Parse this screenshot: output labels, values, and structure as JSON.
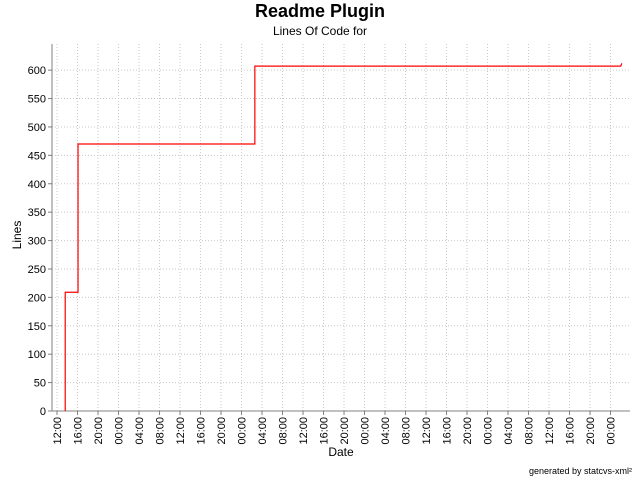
{
  "chart_data": {
    "type": "line",
    "title": "Readme Plugin",
    "subtitle": "Lines Of Code for",
    "x_label": "Date",
    "y_label": "Lines",
    "footer": "generated by statcvs-xml²",
    "grid": true,
    "xlim": [
      -0.98,
      111.8
    ],
    "xticks": [
      {
        "value": 0,
        "label": "12:00"
      },
      {
        "value": 4,
        "label": "16:00"
      },
      {
        "value": 8,
        "label": "20:00"
      },
      {
        "value": 12,
        "label": "00:00"
      },
      {
        "value": 16,
        "label": "04:00"
      },
      {
        "value": 20,
        "label": "08:00"
      },
      {
        "value": 24,
        "label": "12:00"
      },
      {
        "value": 28,
        "label": "16:00"
      },
      {
        "value": 32,
        "label": "20:00"
      },
      {
        "value": 36,
        "label": "00:00"
      },
      {
        "value": 40,
        "label": "04:00"
      },
      {
        "value": 44,
        "label": "08:00"
      },
      {
        "value": 48,
        "label": "12:00"
      },
      {
        "value": 52,
        "label": "16:00"
      },
      {
        "value": 56,
        "label": "20:00"
      },
      {
        "value": 60,
        "label": "00:00"
      },
      {
        "value": 64,
        "label": "04:00"
      },
      {
        "value": 68,
        "label": "08:00"
      },
      {
        "value": 72,
        "label": "12:00"
      },
      {
        "value": 76,
        "label": "16:00"
      },
      {
        "value": 80,
        "label": "20:00"
      },
      {
        "value": 84,
        "label": "00:00"
      },
      {
        "value": 88,
        "label": "04:00"
      },
      {
        "value": 92,
        "label": "08:00"
      },
      {
        "value": 96,
        "label": "12:00"
      },
      {
        "value": 100,
        "label": "16:00"
      },
      {
        "value": 104,
        "label": "20:00"
      },
      {
        "value": 108,
        "label": "00:00"
      }
    ],
    "ylim": [
      0,
      646
    ],
    "yticks": [
      0,
      50,
      100,
      150,
      200,
      250,
      300,
      350,
      400,
      450,
      500,
      550,
      600
    ],
    "x": [
      1.6,
      1.6,
      4.1,
      4.1,
      38.6,
      38.6,
      110,
      110.2
    ],
    "series": [
      {
        "color": "#ff0000",
        "values": [
          0,
          209,
          209,
          470,
          470,
          607,
          607,
          612
        ]
      }
    ]
  }
}
